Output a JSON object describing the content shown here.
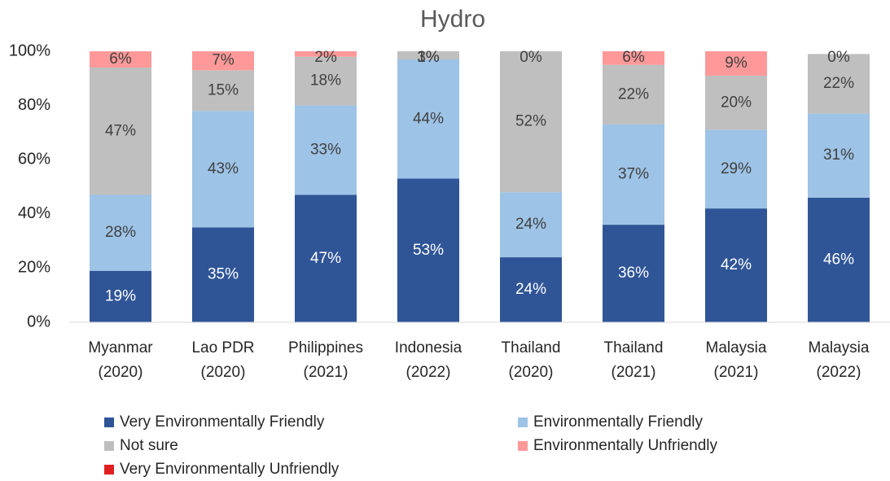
{
  "chart_data": {
    "type": "stacked_bar",
    "title": "Hydro",
    "categories": [
      "Myanmar (2020)",
      "Lao PDR (2020)",
      "Philippines (2021)",
      "Indonesia (2022)",
      "Thailand (2020)",
      "Thailand (2021)",
      "Malaysia (2021)",
      "Malaysia (2022)"
    ],
    "series": [
      {
        "name": "Very Environmentally Friendly",
        "color": "#2f5597",
        "label_color": "#ffffff",
        "values": [
          19,
          35,
          47,
          53,
          24,
          36,
          42,
          46
        ],
        "value_labels": [
          "19%",
          "35%",
          "47%",
          "53%",
          "24%",
          "36%",
          "42%",
          "46%"
        ]
      },
      {
        "name": "Environmentally Friendly",
        "color": "#9dc3e6",
        "label_color": "#404040",
        "values": [
          28,
          43,
          33,
          44,
          24,
          37,
          29,
          31
        ],
        "value_labels": [
          "28%",
          "43%",
          "33%",
          "44%",
          "24%",
          "37%",
          "29%",
          "31%"
        ]
      },
      {
        "name": "Not sure",
        "color": "#bfbfbf",
        "label_color": "#404040",
        "values": [
          47,
          15,
          18,
          3,
          52,
          22,
          20,
          22
        ],
        "value_labels": [
          "47%",
          "15%",
          "18%",
          "3%",
          "52%",
          "22%",
          "20%",
          "22%"
        ]
      },
      {
        "name": "Environmentally Unfriendly",
        "color": "#ff9999",
        "label_color": "#404040",
        "values": [
          6,
          7,
          2,
          1,
          0,
          6,
          9,
          0
        ],
        "value_labels": [
          "6%",
          "7%",
          "2%",
          "1%",
          "0%",
          "6%",
          "9%",
          "0%"
        ]
      },
      {
        "name": "Very Environmentally Unfriendly",
        "color": "#e02020",
        "values": [
          0,
          0,
          0,
          0,
          0,
          0.5,
          0.5,
          0
        ]
      }
    ],
    "ylim": [
      0,
      100
    ],
    "yticks": [
      {
        "value": 0,
        "label": "0%"
      },
      {
        "value": 20,
        "label": "20%"
      },
      {
        "value": 40,
        "label": "40%"
      },
      {
        "value": 60,
        "label": "60%"
      },
      {
        "value": 80,
        "label": "80%"
      },
      {
        "value": 100,
        "label": "100%"
      }
    ],
    "legend": "bottom"
  }
}
